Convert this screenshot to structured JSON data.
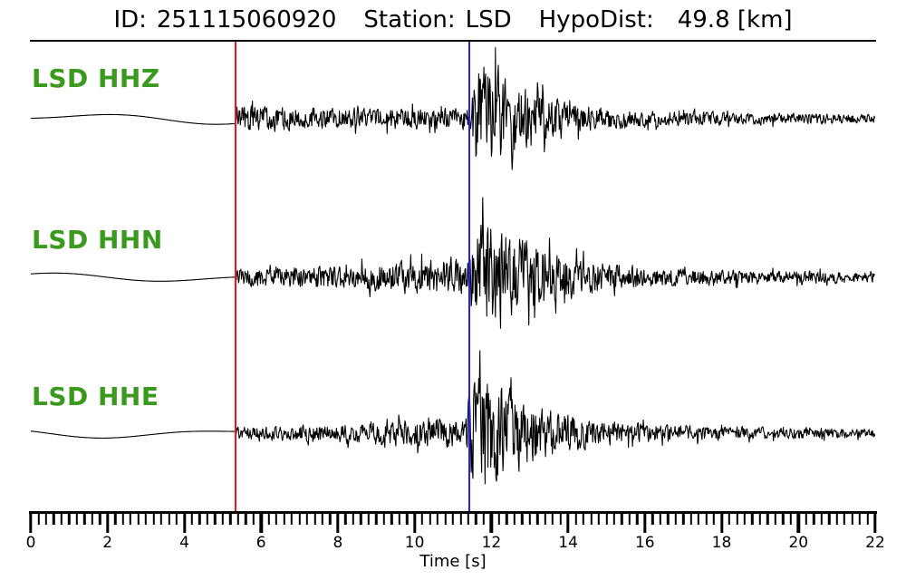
{
  "header": {
    "id_label": "ID:",
    "id_value": "251115060920",
    "station_label": "Station:",
    "station_value": "LSD",
    "hypodist_label": "HypoDist:",
    "hypodist_value": "49.8 [km]"
  },
  "colors": {
    "background": "#ffffff",
    "trace": "#000000",
    "channel_label_green": "#3a9a1e",
    "red_pick": "#f21515",
    "blue_pick": "#2121ee",
    "axis": "#000000"
  },
  "chart_data": {
    "type": "line",
    "subtype": "three-component-seismogram",
    "xlabel": "Time [s]",
    "x_range": [
      0,
      22
    ],
    "x_major_tick_step": 2,
    "x_minor_tick_step": 0.2,
    "x_tick_labels": [
      "0",
      "2",
      "4",
      "6",
      "8",
      "10",
      "12",
      "14",
      "16",
      "18",
      "20",
      "22"
    ],
    "grid": false,
    "picks": [
      {
        "name": "red-pick",
        "time_s": 5.34,
        "color": "#f21515"
      },
      {
        "name": "blue-pick",
        "time_s": 11.42,
        "color": "#2121ee"
      }
    ],
    "series": [
      {
        "name": "LSD HHZ",
        "seed": 42,
        "pre_event_amp": 5,
        "envelope": [
          [
            5.34,
            17
          ],
          [
            5.9,
            16
          ],
          [
            7,
            14
          ],
          [
            8.5,
            13
          ],
          [
            10,
            13
          ],
          [
            11.1,
            12
          ],
          [
            11.42,
            13
          ],
          [
            11.55,
            58
          ],
          [
            11.8,
            68
          ],
          [
            12.15,
            62
          ],
          [
            12.6,
            46
          ],
          [
            13.2,
            32
          ],
          [
            14,
            20
          ],
          [
            15,
            13
          ],
          [
            16,
            10
          ],
          [
            18,
            8
          ],
          [
            20,
            6.5
          ],
          [
            22,
            5.5
          ]
        ]
      },
      {
        "name": "LSD HHN",
        "seed": 1337,
        "pre_event_amp": 4,
        "envelope": [
          [
            5.34,
            10
          ],
          [
            6.5,
            12
          ],
          [
            8,
            15
          ],
          [
            9.5,
            19
          ],
          [
            10.8,
            22
          ],
          [
            11.35,
            20
          ],
          [
            11.55,
            62
          ],
          [
            11.9,
            75
          ],
          [
            12.3,
            64
          ],
          [
            12.9,
            48
          ],
          [
            13.6,
            33
          ],
          [
            14.5,
            22
          ],
          [
            15.5,
            15
          ],
          [
            17,
            11
          ],
          [
            19,
            8.5
          ],
          [
            21,
            7
          ],
          [
            22,
            6.5
          ]
        ]
      },
      {
        "name": "LSD HHE",
        "seed": 2024,
        "pre_event_amp": 4.5,
        "envelope": [
          [
            5.34,
            7.5
          ],
          [
            6.5,
            9
          ],
          [
            8,
            12
          ],
          [
            9.5,
            16
          ],
          [
            10.8,
            19
          ],
          [
            11.3,
            17
          ],
          [
            11.5,
            66
          ],
          [
            11.85,
            78
          ],
          [
            12.3,
            58
          ],
          [
            12.9,
            40
          ],
          [
            13.7,
            26
          ],
          [
            14.7,
            17
          ],
          [
            16,
            11.5
          ],
          [
            18,
            8.5
          ],
          [
            20,
            7
          ],
          [
            22,
            5.5
          ]
        ]
      }
    ]
  }
}
